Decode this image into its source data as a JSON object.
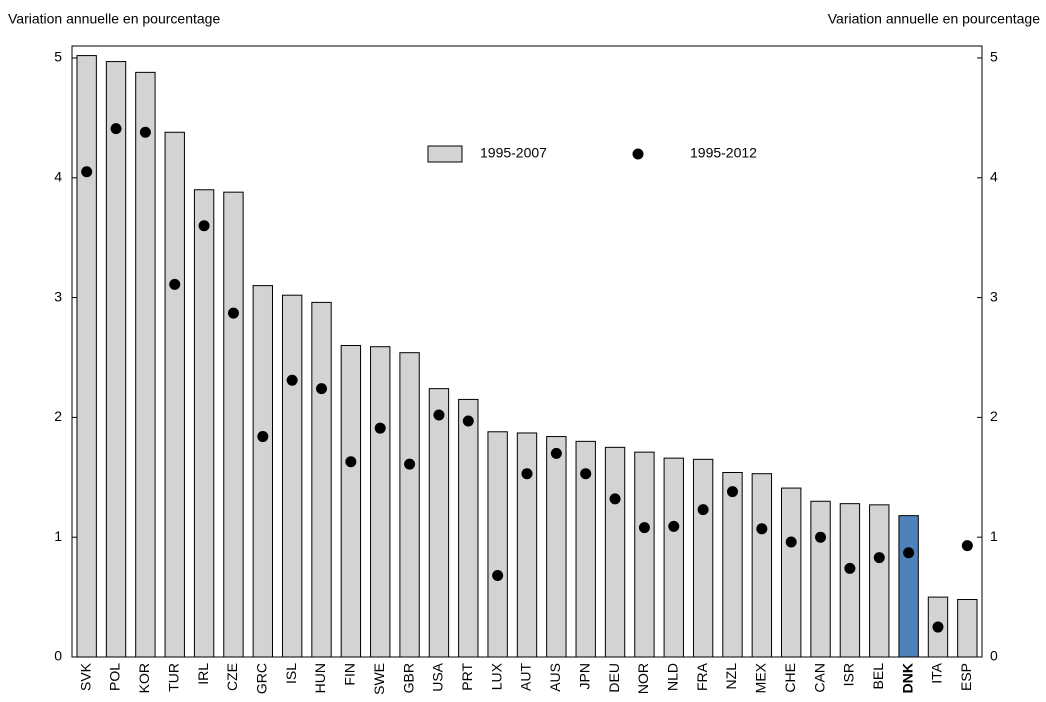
{
  "chart_data": {
    "type": "bar",
    "y_label": "Variation annuelle en pourcentage",
    "y2_label": "Variation annuelle en pourcentage",
    "categories": [
      "SVK",
      "POL",
      "KOR",
      "TUR",
      "IRL",
      "CZE",
      "GRC",
      "ISL",
      "HUN",
      "FIN",
      "SWE",
      "GBR",
      "USA",
      "PRT",
      "LUX",
      "AUT",
      "AUS",
      "JPN",
      "DEU",
      "NOR",
      "NLD",
      "FRA",
      "NZL",
      "MEX",
      "CHE",
      "CAN",
      "ISR",
      "BEL",
      "DNK",
      "ITA",
      "ESP"
    ],
    "series": [
      {
        "name": "1995-2007",
        "type": "bar",
        "color": "#d3d3d3",
        "colors": [
          "#d3d3d3",
          "#d3d3d3",
          "#d3d3d3",
          "#d3d3d3",
          "#d3d3d3",
          "#d3d3d3",
          "#d3d3d3",
          "#d3d3d3",
          "#d3d3d3",
          "#d3d3d3",
          "#d3d3d3",
          "#d3d3d3",
          "#d3d3d3",
          "#d3d3d3",
          "#d3d3d3",
          "#d3d3d3",
          "#d3d3d3",
          "#d3d3d3",
          "#d3d3d3",
          "#d3d3d3",
          "#d3d3d3",
          "#d3d3d3",
          "#d3d3d3",
          "#d3d3d3",
          "#d3d3d3",
          "#d3d3d3",
          "#d3d3d3",
          "#d3d3d3",
          "#4f81bd",
          "#d3d3d3",
          "#d3d3d3"
        ],
        "values": [
          5.02,
          4.97,
          4.88,
          4.38,
          3.9,
          3.88,
          3.1,
          3.02,
          2.96,
          2.6,
          2.59,
          2.54,
          2.24,
          2.15,
          1.88,
          1.87,
          1.84,
          1.8,
          1.75,
          1.71,
          1.66,
          1.65,
          1.54,
          1.53,
          1.41,
          1.3,
          1.28,
          1.27,
          1.18,
          0.5,
          0.48
        ]
      },
      {
        "name": "1995-2012",
        "type": "scatter",
        "color": "#000000",
        "values": [
          4.05,
          4.41,
          4.38,
          3.11,
          3.6,
          2.87,
          1.84,
          2.31,
          2.24,
          1.63,
          1.91,
          1.61,
          2.02,
          1.97,
          0.68,
          1.53,
          1.7,
          1.53,
          1.32,
          1.08,
          1.09,
          1.23,
          1.38,
          1.07,
          0.96,
          1.0,
          0.74,
          0.83,
          0.87,
          0.25,
          0.93
        ]
      }
    ],
    "ylim": [
      0,
      5.1
    ],
    "yticks": [
      0,
      1,
      2,
      3,
      4,
      5
    ],
    "y2lim": [
      0,
      5.1
    ],
    "y2ticks": [
      0,
      1,
      2,
      3,
      4,
      5
    ],
    "legend": "top-center",
    "grid": false
  }
}
